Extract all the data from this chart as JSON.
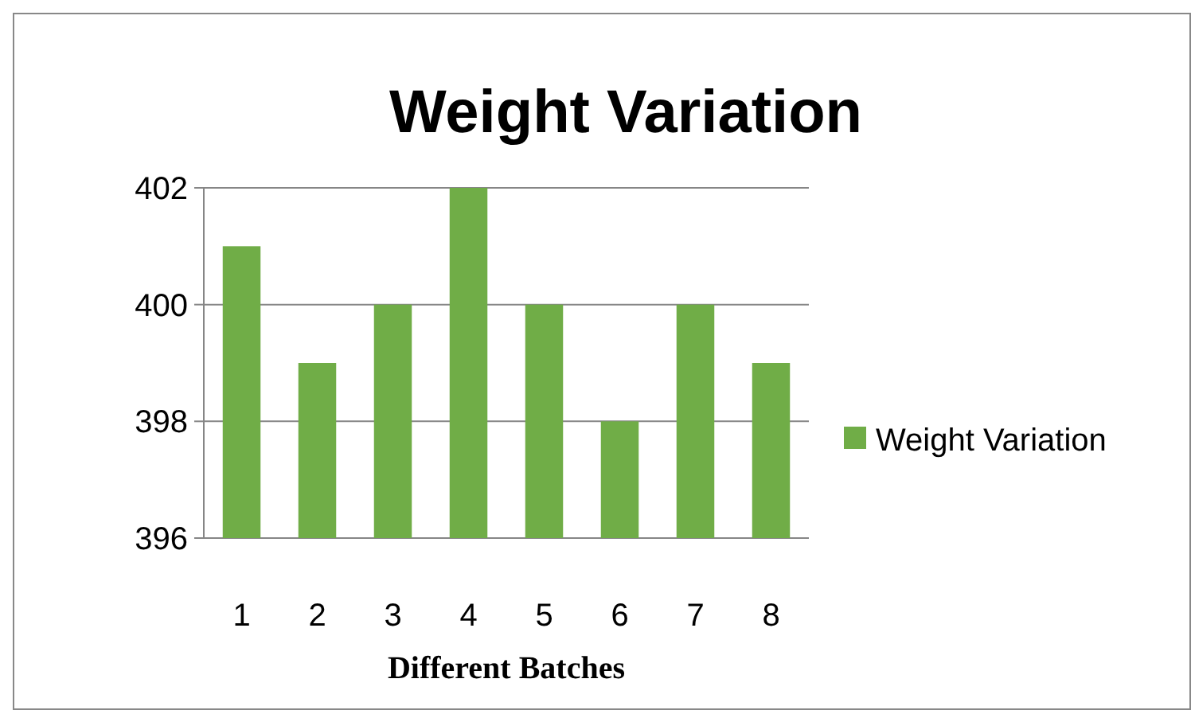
{
  "chart_data": {
    "type": "bar",
    "title": "Weight Variation",
    "xlabel": "Different Batches",
    "categories": [
      "1",
      "2",
      "3",
      "4",
      "5",
      "6",
      "7",
      "8"
    ],
    "series": [
      {
        "name": "Weight Variation",
        "color": "#70ad47",
        "values": [
          401,
          399,
          400,
          402,
          400,
          398,
          400,
          399
        ]
      }
    ],
    "ylim": [
      396,
      402
    ],
    "yticks": [
      396,
      398,
      400,
      402
    ],
    "grid": "y",
    "legend": "right"
  }
}
